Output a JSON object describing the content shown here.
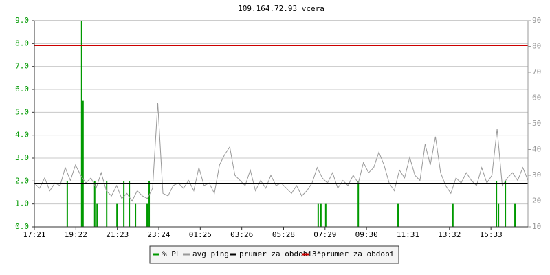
{
  "chart_data": {
    "type": "line",
    "title": "109.164.72.93 vcera",
    "xlim": [
      0,
      1440
    ],
    "xticks": [
      {
        "value": 0,
        "label": "17:21"
      },
      {
        "value": 121,
        "label": "19:22"
      },
      {
        "value": 242,
        "label": "21:23"
      },
      {
        "value": 363,
        "label": "23:24"
      },
      {
        "value": 484,
        "label": "01:25"
      },
      {
        "value": 605,
        "label": "03:26"
      },
      {
        "value": 727,
        "label": "05:28"
      },
      {
        "value": 848,
        "label": "07:29"
      },
      {
        "value": 969,
        "label": "09:30"
      },
      {
        "value": 1090,
        "label": "11:31"
      },
      {
        "value": 1211,
        "label": "13:32"
      },
      {
        "value": 1332,
        "label": "15:33"
      }
    ],
    "ylim": [
      0,
      9
    ],
    "yticks": [
      {
        "value": 0,
        "label": "0.0"
      },
      {
        "value": 1,
        "label": "1.0"
      },
      {
        "value": 2,
        "label": "2.0"
      },
      {
        "value": 3,
        "label": "3.0"
      },
      {
        "value": 4,
        "label": "4.0"
      },
      {
        "value": 5,
        "label": "5.0"
      },
      {
        "value": 6,
        "label": "6.0"
      },
      {
        "value": 7,
        "label": "7.0"
      },
      {
        "value": 8,
        "label": "8.0"
      },
      {
        "value": 9,
        "label": "9.0"
      }
    ],
    "y2lim": [
      10,
      90
    ],
    "y2ticks": [
      10,
      20,
      30,
      40,
      50,
      60,
      70,
      80,
      90
    ],
    "grid": true,
    "series": [
      {
        "name": "% PL",
        "color": "#009900",
        "style": "impulse",
        "x": [
          96,
          138,
          142,
          176,
          183,
          211,
          241,
          261,
          277,
          295,
          329,
          335,
          828,
          836,
          850,
          945,
          1061,
          1221,
          1348,
          1354,
          1374,
          1402
        ],
        "values": [
          2.0,
          9.0,
          5.5,
          2.0,
          1.0,
          2.0,
          1.0,
          2.0,
          2.0,
          1.0,
          1.0,
          2.0,
          1.0,
          1.0,
          1.0,
          2.0,
          1.0,
          1.0,
          2.0,
          1.0,
          2.0,
          1.0
        ]
      },
      {
        "name": "avg ping",
        "color": "#999999",
        "style": "line",
        "axis": "y2",
        "x": [
          0,
          15,
          30,
          45,
          60,
          75,
          90,
          105,
          120,
          135,
          150,
          165,
          180,
          195,
          210,
          225,
          240,
          255,
          270,
          285,
          300,
          315,
          330,
          345,
          360,
          375,
          390,
          405,
          420,
          435,
          450,
          465,
          480,
          495,
          510,
          525,
          540,
          555,
          570,
          585,
          600,
          615,
          630,
          645,
          660,
          675,
          690,
          705,
          720,
          735,
          750,
          765,
          780,
          795,
          810,
          825,
          840,
          855,
          870,
          885,
          900,
          915,
          930,
          945,
          960,
          975,
          990,
          1005,
          1020,
          1035,
          1050,
          1065,
          1080,
          1095,
          1110,
          1125,
          1140,
          1155,
          1170,
          1185,
          1200,
          1215,
          1230,
          1245,
          1260,
          1275,
          1290,
          1305,
          1320,
          1335,
          1350,
          1365,
          1380,
          1395,
          1410,
          1425,
          1440
        ],
        "values": [
          27,
          25,
          29,
          24,
          27,
          26,
          33,
          28,
          34,
          30,
          27,
          29,
          25,
          31,
          24,
          22,
          26,
          21,
          23,
          20,
          24,
          22,
          21,
          25,
          58,
          23,
          22,
          26,
          27,
          25,
          28,
          24,
          33,
          26,
          27,
          23,
          34,
          38,
          41,
          30,
          28,
          26,
          32,
          24,
          28,
          25,
          30,
          26,
          27,
          25,
          23,
          26,
          22,
          24,
          27,
          33,
          29,
          27,
          31,
          25,
          28,
          26,
          30,
          27,
          35,
          31,
          33,
          39,
          34,
          27,
          24,
          32,
          29,
          37,
          30,
          28,
          42,
          34,
          45,
          31,
          26,
          23,
          29,
          27,
          31,
          28,
          26,
          33,
          27,
          30,
          48,
          26,
          29,
          31,
          28,
          33,
          28
        ]
      },
      {
        "name": "prumer za obdobi",
        "color": "#000000",
        "style": "hline",
        "axis": "y2",
        "values": [
          26.8
        ]
      },
      {
        "name": "3*prumer za obdobi",
        "color": "#cc0000",
        "style": "hline",
        "axis": "y2",
        "values": [
          80.4
        ]
      }
    ]
  }
}
